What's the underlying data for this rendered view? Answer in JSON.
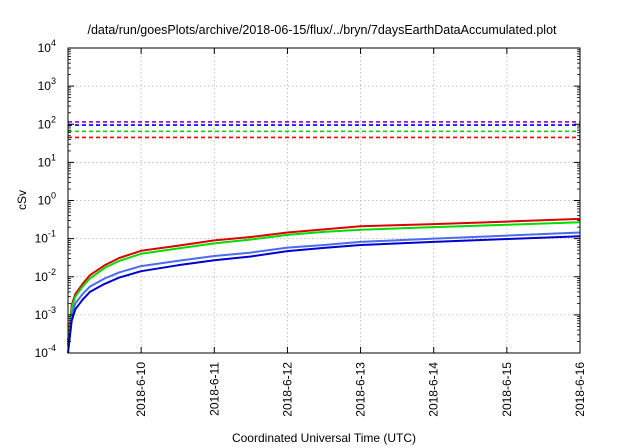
{
  "chart_data": {
    "type": "line",
    "title": "/data/run/goesPlots/archive/2018-06-15/flux/../bryn/7daysEarthDataAccumulated.plot",
    "xlabel": "Coordinated Universal Time (UTC)",
    "ylabel": "cSv",
    "yscale": "log",
    "ylim": [
      0.0001,
      10000
    ],
    "xlim": [
      "2018-06-09 00:00",
      "2018-06-16 00:00"
    ],
    "grid": true,
    "x_ticks": [
      "2018-6-10",
      "2018-6-11",
      "2018-6-12",
      "2018-6-13",
      "2018-6-14",
      "2018-6-15",
      "2018-6-16"
    ],
    "y_ticks": [
      {
        "value": 0.0001,
        "base": "10",
        "exp": "-4"
      },
      {
        "value": 0.001,
        "base": "10",
        "exp": "-3"
      },
      {
        "value": 0.01,
        "base": "10",
        "exp": "-2"
      },
      {
        "value": 0.1,
        "base": "10",
        "exp": "-1"
      },
      {
        "value": 1,
        "base": "10",
        "exp": "0"
      },
      {
        "value": 10,
        "base": "10",
        "exp": "1"
      },
      {
        "value": 100,
        "base": "10",
        "exp": "2"
      },
      {
        "value": 1000,
        "base": "10",
        "exp": "3"
      },
      {
        "value": 10000,
        "base": "10",
        "exp": "4"
      }
    ],
    "thresholds": [
      {
        "color": "#9400d3",
        "value": 115
      },
      {
        "color": "#0000ff",
        "value": 95
      },
      {
        "color": "#00cc00",
        "value": 65
      },
      {
        "color": "#ff0000",
        "value": 45
      }
    ],
    "series": [
      {
        "color": "#dd0000",
        "x": [
          "2018-06-09 00:00",
          "2018-06-09 01:12",
          "2018-06-09 02:24",
          "2018-06-09 04:48",
          "2018-06-09 07:12",
          "2018-06-09 12:00",
          "2018-06-09 16:48",
          "2018-06-10 00:00",
          "2018-06-10 12:00",
          "2018-06-11 00:00",
          "2018-06-11 12:00",
          "2018-06-12 00:00",
          "2018-06-12 12:00",
          "2018-06-13 00:00",
          "2018-06-14 00:00",
          "2018-06-15 00:00",
          "2018-06-16 00:00"
        ],
        "values": [
          0.0002,
          0.0018,
          0.0035,
          0.0065,
          0.011,
          0.02,
          0.031,
          0.048,
          0.065,
          0.09,
          0.11,
          0.145,
          0.175,
          0.21,
          0.24,
          0.28,
          0.33
        ]
      },
      {
        "color": "#00dd00",
        "x": [
          "2018-06-09 00:00",
          "2018-06-09 01:12",
          "2018-06-09 02:24",
          "2018-06-09 04:48",
          "2018-06-09 07:12",
          "2018-06-09 12:00",
          "2018-06-09 16:48",
          "2018-06-10 00:00",
          "2018-06-10 12:00",
          "2018-06-11 00:00",
          "2018-06-11 12:00",
          "2018-06-12 00:00",
          "2018-06-12 12:00",
          "2018-06-13 00:00",
          "2018-06-14 00:00",
          "2018-06-15 00:00",
          "2018-06-16 00:00"
        ],
        "values": [
          0.00018,
          0.0015,
          0.003,
          0.0055,
          0.009,
          0.017,
          0.026,
          0.04,
          0.055,
          0.075,
          0.095,
          0.125,
          0.15,
          0.17,
          0.2,
          0.23,
          0.27
        ]
      },
      {
        "color": "#4a6cf0",
        "x": [
          "2018-06-09 00:00",
          "2018-06-09 01:12",
          "2018-06-09 02:24",
          "2018-06-09 04:48",
          "2018-06-09 07:12",
          "2018-06-09 12:00",
          "2018-06-09 16:48",
          "2018-06-10 00:00",
          "2018-06-10 12:00",
          "2018-06-11 00:00",
          "2018-06-11 12:00",
          "2018-06-12 00:00",
          "2018-06-12 12:00",
          "2018-06-13 00:00",
          "2018-06-14 00:00",
          "2018-06-15 00:00",
          "2018-06-16 00:00"
        ],
        "values": [
          0.00015,
          0.001,
          0.002,
          0.0035,
          0.0055,
          0.009,
          0.013,
          0.019,
          0.026,
          0.035,
          0.043,
          0.058,
          0.068,
          0.082,
          0.1,
          0.12,
          0.145
        ]
      },
      {
        "color": "#0000cc",
        "x": [
          "2018-06-09 00:00",
          "2018-06-09 01:12",
          "2018-06-09 02:24",
          "2018-06-09 04:48",
          "2018-06-09 07:12",
          "2018-06-09 12:00",
          "2018-06-09 16:48",
          "2018-06-10 00:00",
          "2018-06-10 12:00",
          "2018-06-11 00:00",
          "2018-06-11 12:00",
          "2018-06-12 00:00",
          "2018-06-12 12:00",
          "2018-06-13 00:00",
          "2018-06-14 00:00",
          "2018-06-15 00:00",
          "2018-06-16 00:00"
        ],
        "values": [
          0.0001,
          0.0007,
          0.0014,
          0.0025,
          0.004,
          0.0065,
          0.0095,
          0.014,
          0.02,
          0.027,
          0.034,
          0.047,
          0.057,
          0.068,
          0.082,
          0.098,
          0.115
        ]
      }
    ]
  }
}
